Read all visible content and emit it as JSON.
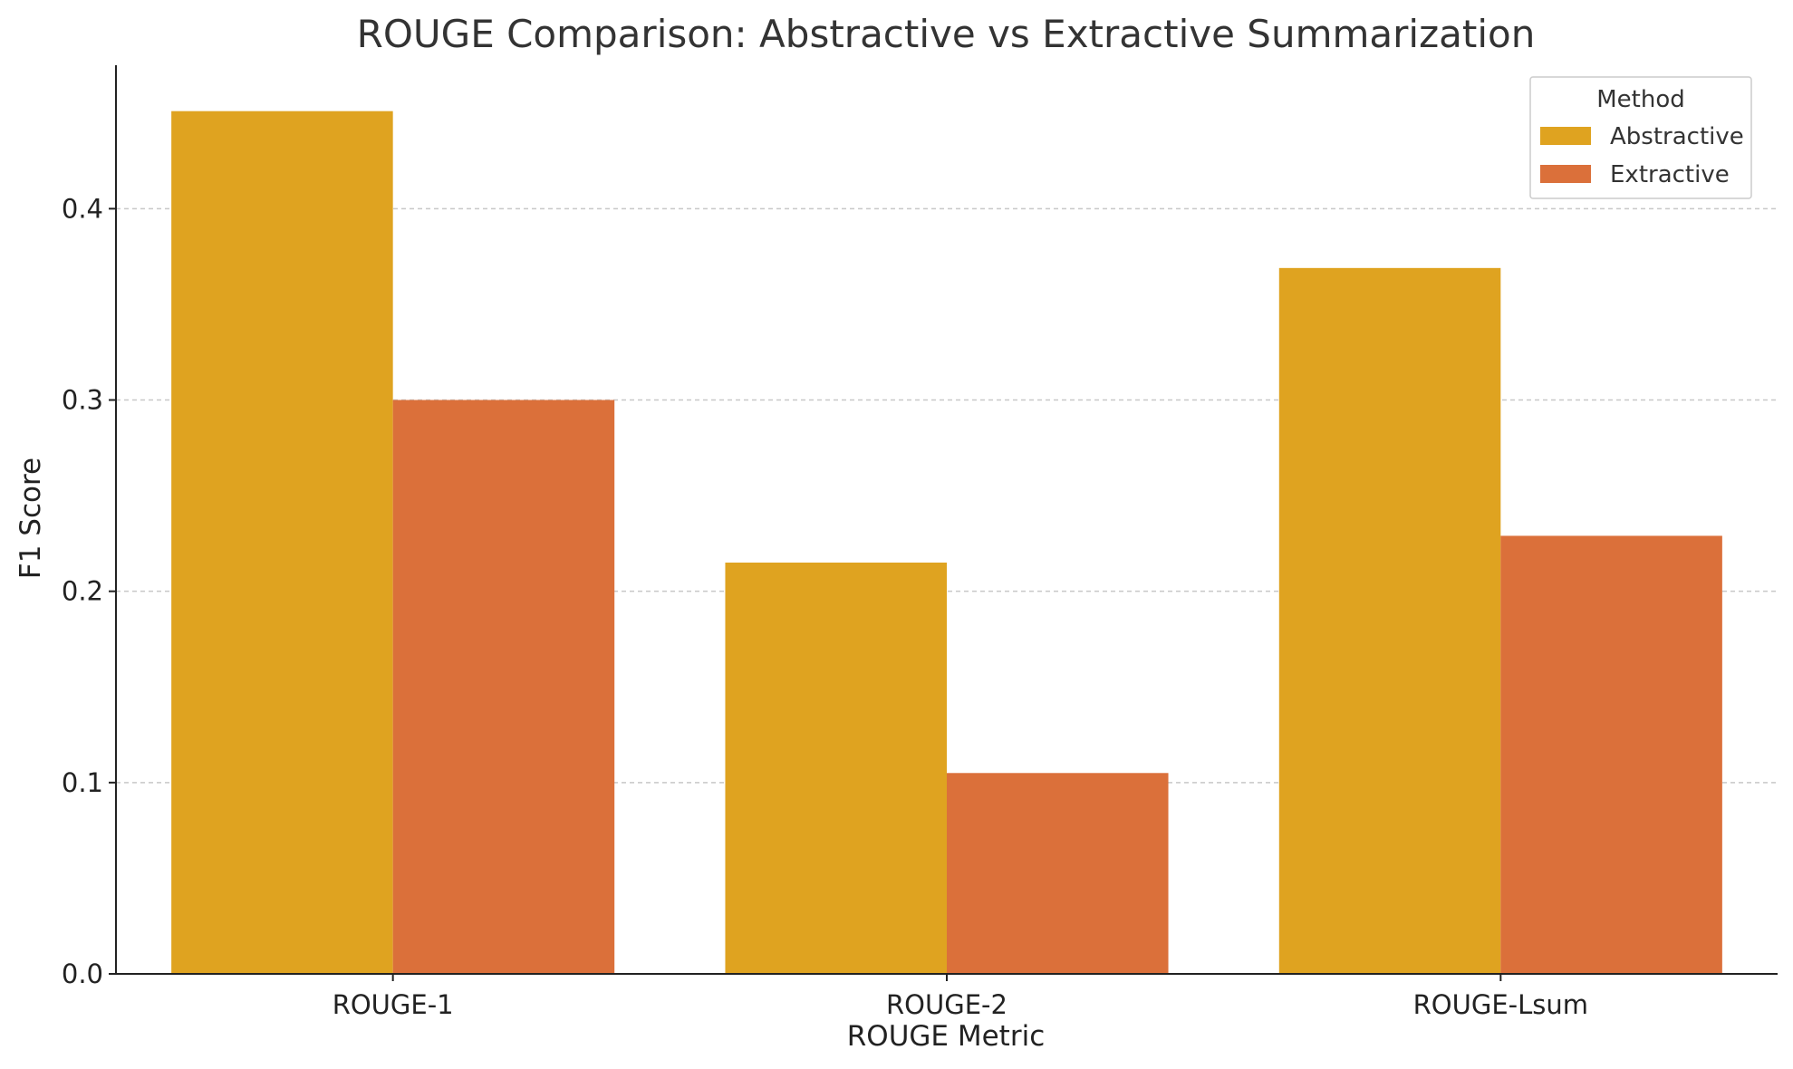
{
  "chart_data": {
    "type": "bar",
    "title": "ROUGE Comparison: Abstractive vs Extractive Summarization",
    "xlabel": "ROUGE Metric",
    "ylabel": "F1 Score",
    "categories": [
      "ROUGE-1",
      "ROUGE-2",
      "ROUGE-Lsum"
    ],
    "series": [
      {
        "name": "Abstractive",
        "color": "#DFA320",
        "values": [
          0.451,
          0.215,
          0.369
        ]
      },
      {
        "name": "Extractive",
        "color": "#DB703A",
        "values": [
          0.3,
          0.105,
          0.229
        ]
      }
    ],
    "ylim": [
      0,
      0.475
    ],
    "yticks": [
      0.0,
      0.1,
      0.2,
      0.3,
      0.4
    ],
    "ytick_labels": [
      "0.0",
      "0.1",
      "0.2",
      "0.3",
      "0.4"
    ],
    "grid": "horizontal dashed",
    "legend": {
      "title": "Method",
      "placement": "top-right"
    }
  }
}
